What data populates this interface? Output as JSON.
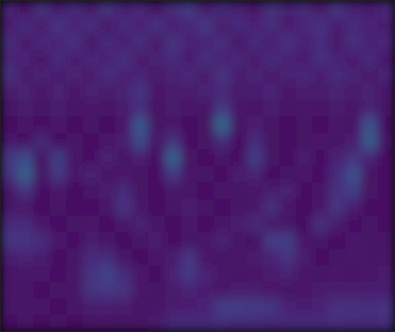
{
  "chart_data": {
    "type": "heatmap",
    "tick_labels": false,
    "clim": [
      0,
      1
    ],
    "cells": [
      [
        0.1,
        0.06,
        0.14,
        0.08,
        0.12,
        0.07,
        0.15,
        0.09,
        0.11,
        0.06,
        0.13,
        0.17,
        0.08,
        0.12,
        0.1,
        0.06,
        0.14,
        0.09,
        0.12,
        0.07,
        0.15,
        0.1,
        0.08,
        0.12
      ],
      [
        0.08,
        0.12,
        0.07,
        0.15,
        0.09,
        0.13,
        0.06,
        0.12,
        0.1,
        0.14,
        0.08,
        0.11,
        0.16,
        0.07,
        0.12,
        0.09,
        0.13,
        0.07,
        0.11,
        0.14,
        0.08,
        0.12,
        0.1,
        0.07
      ],
      [
        0.12,
        0.07,
        0.11,
        0.09,
        0.14,
        0.06,
        0.12,
        0.08,
        0.13,
        0.07,
        0.15,
        0.09,
        0.1,
        0.13,
        0.06,
        0.12,
        0.08,
        0.14,
        0.09,
        0.12,
        0.07,
        0.13,
        0.09,
        0.11
      ],
      [
        0.09,
        0.1,
        0.06,
        0.12,
        0.08,
        0.11,
        0.09,
        0.14,
        0.07,
        0.1,
        0.12,
        0.08,
        0.13,
        0.09,
        0.11,
        0.07,
        0.12,
        0.1,
        0.08,
        0.13,
        0.1,
        0.08,
        0.12,
        0.06
      ],
      [
        0.14,
        0.07,
        0.09,
        0.08,
        0.1,
        0.07,
        0.13,
        0.09,
        0.1,
        0.07,
        0.09,
        0.11,
        0.07,
        0.15,
        0.08,
        0.1,
        0.07,
        0.09,
        0.11,
        0.08,
        0.12,
        0.09,
        0.07,
        0.1
      ],
      [
        0.07,
        0.09,
        0.06,
        0.1,
        0.06,
        0.09,
        0.07,
        0.1,
        0.15,
        0.06,
        0.08,
        0.07,
        0.09,
        0.11,
        0.07,
        0.08,
        0.1,
        0.06,
        0.08,
        0.07,
        0.09,
        0.07,
        0.1,
        0.06
      ],
      [
        0.05,
        0.07,
        0.05,
        0.08,
        0.05,
        0.06,
        0.05,
        0.08,
        0.12,
        0.05,
        0.07,
        0.06,
        0.05,
        0.16,
        0.06,
        0.05,
        0.08,
        0.05,
        0.06,
        0.05,
        0.07,
        0.06,
        0.09,
        0.05
      ],
      [
        0.04,
        0.05,
        0.04,
        0.06,
        0.04,
        0.05,
        0.04,
        0.06,
        0.26,
        0.05,
        0.06,
        0.04,
        0.05,
        0.32,
        0.05,
        0.08,
        0.05,
        0.04,
        0.05,
        0.04,
        0.06,
        0.05,
        0.24,
        0.04
      ],
      [
        0.06,
        0.04,
        0.12,
        0.04,
        0.05,
        0.04,
        0.06,
        0.08,
        0.22,
        0.05,
        0.14,
        0.04,
        0.05,
        0.12,
        0.04,
        0.12,
        0.05,
        0.04,
        0.05,
        0.06,
        0.05,
        0.08,
        0.28,
        0.05
      ],
      [
        0.16,
        0.22,
        0.05,
        0.18,
        0.05,
        0.04,
        0.1,
        0.05,
        0.08,
        0.04,
        0.3,
        0.05,
        0.04,
        0.05,
        0.04,
        0.18,
        0.05,
        0.04,
        0.08,
        0.04,
        0.1,
        0.14,
        0.1,
        0.04
      ],
      [
        0.14,
        0.3,
        0.05,
        0.16,
        0.06,
        0.1,
        0.05,
        0.06,
        0.05,
        0.04,
        0.16,
        0.06,
        0.05,
        0.04,
        0.08,
        0.1,
        0.04,
        0.05,
        0.06,
        0.04,
        0.12,
        0.24,
        0.05,
        0.04
      ],
      [
        0.06,
        0.14,
        0.04,
        0.06,
        0.04,
        0.05,
        0.08,
        0.12,
        0.05,
        0.04,
        0.06,
        0.05,
        0.04,
        0.06,
        0.05,
        0.06,
        0.08,
        0.1,
        0.04,
        0.05,
        0.14,
        0.18,
        0.05,
        0.04
      ],
      [
        0.05,
        0.06,
        0.04,
        0.05,
        0.04,
        0.04,
        0.06,
        0.15,
        0.06,
        0.04,
        0.05,
        0.08,
        0.05,
        0.04,
        0.05,
        0.06,
        0.14,
        0.06,
        0.04,
        0.06,
        0.15,
        0.08,
        0.04,
        0.04
      ],
      [
        0.12,
        0.12,
        0.06,
        0.04,
        0.05,
        0.06,
        0.04,
        0.06,
        0.1,
        0.05,
        0.04,
        0.06,
        0.04,
        0.05,
        0.08,
        0.12,
        0.06,
        0.05,
        0.04,
        0.14,
        0.08,
        0.04,
        0.05,
        0.04
      ],
      [
        0.15,
        0.15,
        0.13,
        0.06,
        0.04,
        0.08,
        0.05,
        0.04,
        0.05,
        0.08,
        0.04,
        0.05,
        0.06,
        0.1,
        0.05,
        0.04,
        0.18,
        0.18,
        0.06,
        0.05,
        0.04,
        0.06,
        0.05,
        0.05
      ],
      [
        0.08,
        0.1,
        0.08,
        0.04,
        0.05,
        0.12,
        0.12,
        0.05,
        0.04,
        0.06,
        0.08,
        0.15,
        0.06,
        0.05,
        0.06,
        0.07,
        0.1,
        0.15,
        0.08,
        0.04,
        0.05,
        0.06,
        0.05,
        0.06
      ],
      [
        0.05,
        0.06,
        0.06,
        0.04,
        0.06,
        0.14,
        0.2,
        0.12,
        0.06,
        0.04,
        0.1,
        0.17,
        0.1,
        0.06,
        0.05,
        0.06,
        0.07,
        0.09,
        0.06,
        0.05,
        0.06,
        0.05,
        0.06,
        0.07
      ],
      [
        0.06,
        0.05,
        0.04,
        0.05,
        0.05,
        0.15,
        0.16,
        0.15,
        0.06,
        0.05,
        0.07,
        0.09,
        0.08,
        0.06,
        0.08,
        0.07,
        0.06,
        0.05,
        0.06,
        0.07,
        0.08,
        0.07,
        0.08,
        0.08
      ],
      [
        0.05,
        0.06,
        0.05,
        0.04,
        0.05,
        0.07,
        0.08,
        0.07,
        0.05,
        0.06,
        0.07,
        0.08,
        0.1,
        0.18,
        0.18,
        0.17,
        0.16,
        0.1,
        0.08,
        0.1,
        0.14,
        0.14,
        0.13,
        0.14
      ],
      [
        0.04,
        0.05,
        0.04,
        0.05,
        0.04,
        0.05,
        0.06,
        0.05,
        0.06,
        0.07,
        0.12,
        0.12,
        0.12,
        0.13,
        0.12,
        0.12,
        0.11,
        0.12,
        0.12,
        0.12,
        0.13,
        0.12,
        0.12,
        0.13
      ]
    ]
  }
}
